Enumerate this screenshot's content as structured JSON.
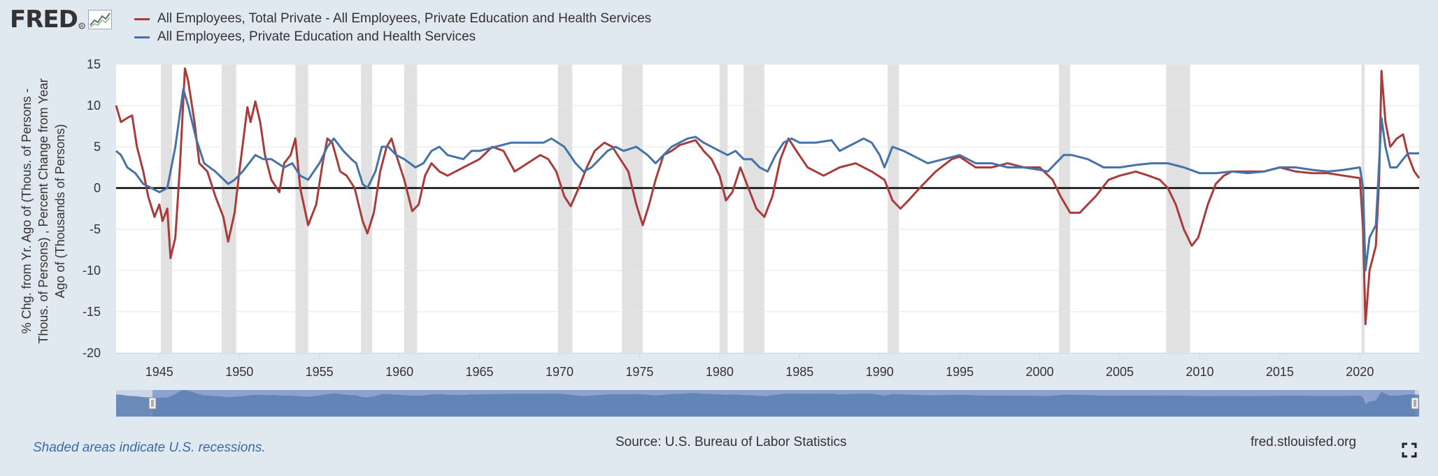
{
  "header": {
    "logo_text": "FRED",
    "logo_mark": "registered-trademark",
    "logo_icon": "line-graph-icon"
  },
  "legend": [
    {
      "label": "All Employees, Total Private - All Employees, Private Education and Health Services",
      "color": "#aa3b3b"
    },
    {
      "label": "All Employees, Private Education and Health Services",
      "color": "#4572a7"
    }
  ],
  "footer": {
    "recession_note": "Shaded areas indicate U.S. recessions.",
    "source": "Source: U.S. Bureau of Labor Statistics",
    "site": "fred.stlouisfed.org",
    "fullscreen_icon": "fullscreen-icon"
  },
  "chart_data": {
    "type": "line",
    "ylabel": "% Chg. from Yr. Ago of (Thous. of Persons - Thous. of Persons) , Percent Change from Year Ago of (Thousands of Persons)",
    "xlim": [
      1942.3,
      2023.7
    ],
    "ylim": [
      -20,
      15
    ],
    "x_ticks": [
      1945,
      1950,
      1955,
      1960,
      1965,
      1970,
      1975,
      1980,
      1985,
      1990,
      1995,
      2000,
      2005,
      2010,
      2015,
      2020
    ],
    "y_ticks": [
      -20,
      -15,
      -10,
      -5,
      0,
      5,
      10,
      15
    ],
    "grid": true,
    "legend_position": "top-left",
    "recessions": [
      [
        1945.1,
        1945.8
      ],
      [
        1948.9,
        1949.8
      ],
      [
        1953.5,
        1954.3
      ],
      [
        1957.6,
        1958.3
      ],
      [
        1960.3,
        1961.1
      ],
      [
        1969.9,
        1970.8
      ],
      [
        1973.9,
        1975.2
      ],
      [
        1980.0,
        1980.5
      ],
      [
        1981.5,
        1982.8
      ],
      [
        1990.5,
        1991.2
      ],
      [
        2001.2,
        2001.9
      ],
      [
        2007.9,
        2009.4
      ],
      [
        2020.1,
        2020.3
      ]
    ],
    "series": [
      {
        "name": "All Employees, Total Private - All Employees, Private Education and Health Services",
        "color": "#aa3b3b",
        "points": [
          [
            1942.3,
            10
          ],
          [
            1942.6,
            8
          ],
          [
            1943.0,
            8.5
          ],
          [
            1943.3,
            8.8
          ],
          [
            1943.6,
            5
          ],
          [
            1944.0,
            2
          ],
          [
            1944.3,
            -1
          ],
          [
            1944.7,
            -3.5
          ],
          [
            1945.0,
            -2
          ],
          [
            1945.2,
            -4
          ],
          [
            1945.5,
            -2.5
          ],
          [
            1945.7,
            -8.5
          ],
          [
            1946.0,
            -6
          ],
          [
            1946.3,
            3
          ],
          [
            1946.6,
            14.5
          ],
          [
            1946.8,
            13
          ],
          [
            1947.2,
            8
          ],
          [
            1947.5,
            3
          ],
          [
            1948.0,
            2
          ],
          [
            1948.5,
            -1
          ],
          [
            1949.0,
            -3.5
          ],
          [
            1949.3,
            -6.5
          ],
          [
            1949.7,
            -3
          ],
          [
            1950.0,
            2
          ],
          [
            1950.5,
            9.8
          ],
          [
            1950.7,
            8
          ],
          [
            1951.0,
            10.5
          ],
          [
            1951.3,
            8
          ],
          [
            1951.6,
            4
          ],
          [
            1952.0,
            1
          ],
          [
            1952.5,
            -0.5
          ],
          [
            1952.8,
            3
          ],
          [
            1953.2,
            4
          ],
          [
            1953.5,
            6
          ],
          [
            1953.8,
            0
          ],
          [
            1954.3,
            -4.5
          ],
          [
            1954.8,
            -2
          ],
          [
            1955.2,
            3
          ],
          [
            1955.5,
            6
          ],
          [
            1955.8,
            5.5
          ],
          [
            1956.3,
            2
          ],
          [
            1956.7,
            1.5
          ],
          [
            1957.2,
            0
          ],
          [
            1957.7,
            -4
          ],
          [
            1958.0,
            -5.5
          ],
          [
            1958.4,
            -3
          ],
          [
            1958.8,
            2
          ],
          [
            1959.2,
            5
          ],
          [
            1959.5,
            6
          ],
          [
            1959.8,
            4
          ],
          [
            1960.3,
            1
          ],
          [
            1960.8,
            -2.8
          ],
          [
            1961.2,
            -2
          ],
          [
            1961.6,
            1.5
          ],
          [
            1962.0,
            3
          ],
          [
            1962.5,
            2
          ],
          [
            1963.0,
            1.5
          ],
          [
            1963.5,
            2
          ],
          [
            1964.0,
            2.5
          ],
          [
            1965.0,
            3.5
          ],
          [
            1965.8,
            5
          ],
          [
            1966.5,
            4.5
          ],
          [
            1967.2,
            2
          ],
          [
            1968.0,
            3
          ],
          [
            1968.8,
            4
          ],
          [
            1969.3,
            3.5
          ],
          [
            1969.8,
            2
          ],
          [
            1970.3,
            -1
          ],
          [
            1970.7,
            -2.2
          ],
          [
            1971.2,
            0
          ],
          [
            1971.7,
            2.5
          ],
          [
            1972.2,
            4.5
          ],
          [
            1972.8,
            5.5
          ],
          [
            1973.3,
            5
          ],
          [
            1973.8,
            3.5
          ],
          [
            1974.3,
            2
          ],
          [
            1974.8,
            -2
          ],
          [
            1975.2,
            -4.5
          ],
          [
            1975.6,
            -2
          ],
          [
            1976.0,
            1
          ],
          [
            1976.5,
            4
          ],
          [
            1977.0,
            4.5
          ],
          [
            1977.5,
            5.2
          ],
          [
            1978.0,
            5.5
          ],
          [
            1978.5,
            5.8
          ],
          [
            1979.0,
            4.5
          ],
          [
            1979.5,
            3.5
          ],
          [
            1980.0,
            1.5
          ],
          [
            1980.4,
            -1.5
          ],
          [
            1980.8,
            -0.5
          ],
          [
            1981.3,
            2.5
          ],
          [
            1981.8,
            0
          ],
          [
            1982.3,
            -2.5
          ],
          [
            1982.8,
            -3.5
          ],
          [
            1983.3,
            -1
          ],
          [
            1983.8,
            3.5
          ],
          [
            1984.3,
            6
          ],
          [
            1984.8,
            4.5
          ],
          [
            1985.5,
            2.5
          ],
          [
            1986.0,
            2
          ],
          [
            1986.5,
            1.5
          ],
          [
            1987.5,
            2.5
          ],
          [
            1988.5,
            3
          ],
          [
            1989.5,
            2
          ],
          [
            1990.3,
            1
          ],
          [
            1990.8,
            -1.5
          ],
          [
            1991.3,
            -2.5
          ],
          [
            1991.8,
            -1.5
          ],
          [
            1992.5,
            0
          ],
          [
            1993.5,
            2
          ],
          [
            1994.5,
            3.5
          ],
          [
            1995.0,
            3.8
          ],
          [
            1996.0,
            2.5
          ],
          [
            1997.0,
            2.5
          ],
          [
            1998.0,
            3
          ],
          [
            1999.0,
            2.5
          ],
          [
            2000.0,
            2.5
          ],
          [
            2000.8,
            1
          ],
          [
            2001.3,
            -1
          ],
          [
            2001.9,
            -3
          ],
          [
            2002.5,
            -3
          ],
          [
            2003.0,
            -2
          ],
          [
            2003.5,
            -1
          ],
          [
            2004.3,
            1
          ],
          [
            2005.0,
            1.5
          ],
          [
            2006.0,
            2
          ],
          [
            2006.8,
            1.5
          ],
          [
            2007.5,
            1
          ],
          [
            2008.0,
            0
          ],
          [
            2008.5,
            -2
          ],
          [
            2009.0,
            -5
          ],
          [
            2009.5,
            -7
          ],
          [
            2009.9,
            -6
          ],
          [
            2010.5,
            -2
          ],
          [
            2011.0,
            0.5
          ],
          [
            2011.5,
            1.5
          ],
          [
            2012.0,
            2
          ],
          [
            2013.0,
            2
          ],
          [
            2014.0,
            2
          ],
          [
            2015.0,
            2.5
          ],
          [
            2016.0,
            2
          ],
          [
            2017.0,
            1.8
          ],
          [
            2018.0,
            1.8
          ],
          [
            2019.0,
            1.5
          ],
          [
            2020.0,
            1.2
          ],
          [
            2020.2,
            -5
          ],
          [
            2020.35,
            -16.5
          ],
          [
            2020.6,
            -10
          ],
          [
            2021.0,
            -7
          ],
          [
            2021.2,
            1
          ],
          [
            2021.35,
            14.2
          ],
          [
            2021.6,
            8
          ],
          [
            2021.9,
            5
          ],
          [
            2022.3,
            6
          ],
          [
            2022.7,
            6.5
          ],
          [
            2023.0,
            4
          ],
          [
            2023.4,
            2
          ],
          [
            2023.7,
            1.2
          ]
        ]
      },
      {
        "name": "All Employees, Private Education and Health Services",
        "color": "#4572a7",
        "points": [
          [
            1942.3,
            4.5
          ],
          [
            1942.6,
            4
          ],
          [
            1943.0,
            2.5
          ],
          [
            1943.5,
            1.8
          ],
          [
            1944.0,
            0.5
          ],
          [
            1944.5,
            0
          ],
          [
            1945.0,
            -0.5
          ],
          [
            1945.5,
            0
          ],
          [
            1946.0,
            5
          ],
          [
            1946.5,
            12
          ],
          [
            1946.8,
            10
          ],
          [
            1947.3,
            6
          ],
          [
            1947.8,
            3
          ],
          [
            1948.5,
            2
          ],
          [
            1949.3,
            0.5
          ],
          [
            1949.7,
            1
          ],
          [
            1950.2,
            2
          ],
          [
            1951.0,
            4
          ],
          [
            1951.5,
            3.5
          ],
          [
            1952.0,
            3.5
          ],
          [
            1952.8,
            2.5
          ],
          [
            1953.3,
            3
          ],
          [
            1953.8,
            1.5
          ],
          [
            1954.3,
            1
          ],
          [
            1955.0,
            3
          ],
          [
            1955.5,
            5
          ],
          [
            1955.9,
            6
          ],
          [
            1956.5,
            4.5
          ],
          [
            1957.0,
            3.5
          ],
          [
            1957.3,
            3
          ],
          [
            1957.7,
            0.5
          ],
          [
            1958.0,
            0
          ],
          [
            1958.5,
            2
          ],
          [
            1958.9,
            5
          ],
          [
            1959.3,
            5
          ],
          [
            1959.8,
            4
          ],
          [
            1960.3,
            3.5
          ],
          [
            1961.0,
            2.5
          ],
          [
            1961.5,
            3
          ],
          [
            1962.0,
            4.5
          ],
          [
            1962.5,
            5
          ],
          [
            1963.0,
            4
          ],
          [
            1964.0,
            3.5
          ],
          [
            1964.5,
            4.5
          ],
          [
            1965.0,
            4.5
          ],
          [
            1966.0,
            5
          ],
          [
            1967.0,
            5.5
          ],
          [
            1968.0,
            5.5
          ],
          [
            1969.0,
            5.5
          ],
          [
            1969.5,
            6
          ],
          [
            1970.3,
            5
          ],
          [
            1971.0,
            3
          ],
          [
            1971.5,
            2
          ],
          [
            1972.0,
            2.5
          ],
          [
            1972.5,
            3.5
          ],
          [
            1973.0,
            4.5
          ],
          [
            1973.5,
            5
          ],
          [
            1974.0,
            4.5
          ],
          [
            1974.8,
            5
          ],
          [
            1975.5,
            4
          ],
          [
            1976.0,
            3
          ],
          [
            1976.5,
            4
          ],
          [
            1977.0,
            5
          ],
          [
            1977.5,
            5.5
          ],
          [
            1978.0,
            6
          ],
          [
            1978.5,
            6.2
          ],
          [
            1979.0,
            5.5
          ],
          [
            1980.0,
            4.5
          ],
          [
            1980.5,
            4
          ],
          [
            1981.0,
            4.5
          ],
          [
            1981.5,
            3.5
          ],
          [
            1982.0,
            3.5
          ],
          [
            1982.5,
            2.5
          ],
          [
            1983.0,
            2
          ],
          [
            1983.5,
            4
          ],
          [
            1984.0,
            5.5
          ],
          [
            1984.5,
            6
          ],
          [
            1985.0,
            5.5
          ],
          [
            1986.0,
            5.5
          ],
          [
            1987.0,
            5.8
          ],
          [
            1987.5,
            4.5
          ],
          [
            1988.0,
            5
          ],
          [
            1989.0,
            6
          ],
          [
            1989.5,
            5.5
          ],
          [
            1990.0,
            4
          ],
          [
            1990.3,
            2.5
          ],
          [
            1990.8,
            5
          ],
          [
            1991.5,
            4.5
          ],
          [
            1992.0,
            4
          ],
          [
            1993.0,
            3
          ],
          [
            1994.0,
            3.5
          ],
          [
            1995.0,
            4
          ],
          [
            1996.0,
            3
          ],
          [
            1997.0,
            3
          ],
          [
            1998.0,
            2.5
          ],
          [
            1999.0,
            2.5
          ],
          [
            2000.0,
            2.2
          ],
          [
            2000.5,
            2
          ],
          [
            2001.0,
            3
          ],
          [
            2001.5,
            4
          ],
          [
            2002.0,
            4
          ],
          [
            2003.0,
            3.5
          ],
          [
            2004.0,
            2.5
          ],
          [
            2005.0,
            2.5
          ],
          [
            2006.0,
            2.8
          ],
          [
            2007.0,
            3
          ],
          [
            2008.0,
            3
          ],
          [
            2009.0,
            2.5
          ],
          [
            2010.0,
            1.8
          ],
          [
            2011.0,
            1.8
          ],
          [
            2012.0,
            2
          ],
          [
            2013.0,
            1.8
          ],
          [
            2014.0,
            2
          ],
          [
            2015.0,
            2.5
          ],
          [
            2016.0,
            2.5
          ],
          [
            2017.0,
            2.2
          ],
          [
            2018.0,
            2
          ],
          [
            2019.0,
            2.2
          ],
          [
            2020.0,
            2.5
          ],
          [
            2020.2,
            0
          ],
          [
            2020.35,
            -10
          ],
          [
            2020.6,
            -6
          ],
          [
            2021.0,
            -4.5
          ],
          [
            2021.2,
            3
          ],
          [
            2021.35,
            8.5
          ],
          [
            2021.6,
            5
          ],
          [
            2021.9,
            2.5
          ],
          [
            2022.3,
            2.5
          ],
          [
            2022.7,
            3.5
          ],
          [
            2023.0,
            4.2
          ],
          [
            2023.7,
            4.2
          ]
        ]
      }
    ]
  }
}
